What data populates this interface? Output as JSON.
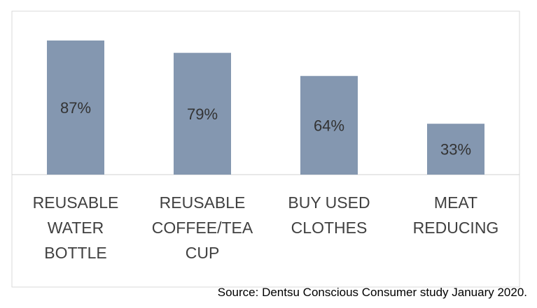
{
  "chart_data": {
    "type": "bar",
    "categories": [
      [
        "REUSABLE",
        "WATER",
        "BOTTLE"
      ],
      [
        "REUSABLE",
        "COFFEE/TEA",
        "CUP"
      ],
      [
        "BUY USED",
        "CLOTHES"
      ],
      [
        "MEAT",
        "REDUCING"
      ]
    ],
    "values": [
      87,
      79,
      64,
      33
    ],
    "value_labels": [
      "87%",
      "79%",
      "64%",
      "33%"
    ],
    "unit": "%",
    "title": "",
    "xlabel": "",
    "ylabel": "",
    "ylim": [
      0,
      100
    ],
    "grid": false,
    "legend": "none"
  },
  "source": "Source: Dentsu Conscious Consumer study January 2020.",
  "colors": {
    "bar": "#8497b0",
    "frame": "#d9d9d9",
    "axis": "#d0d0d0",
    "text": "#404040"
  }
}
